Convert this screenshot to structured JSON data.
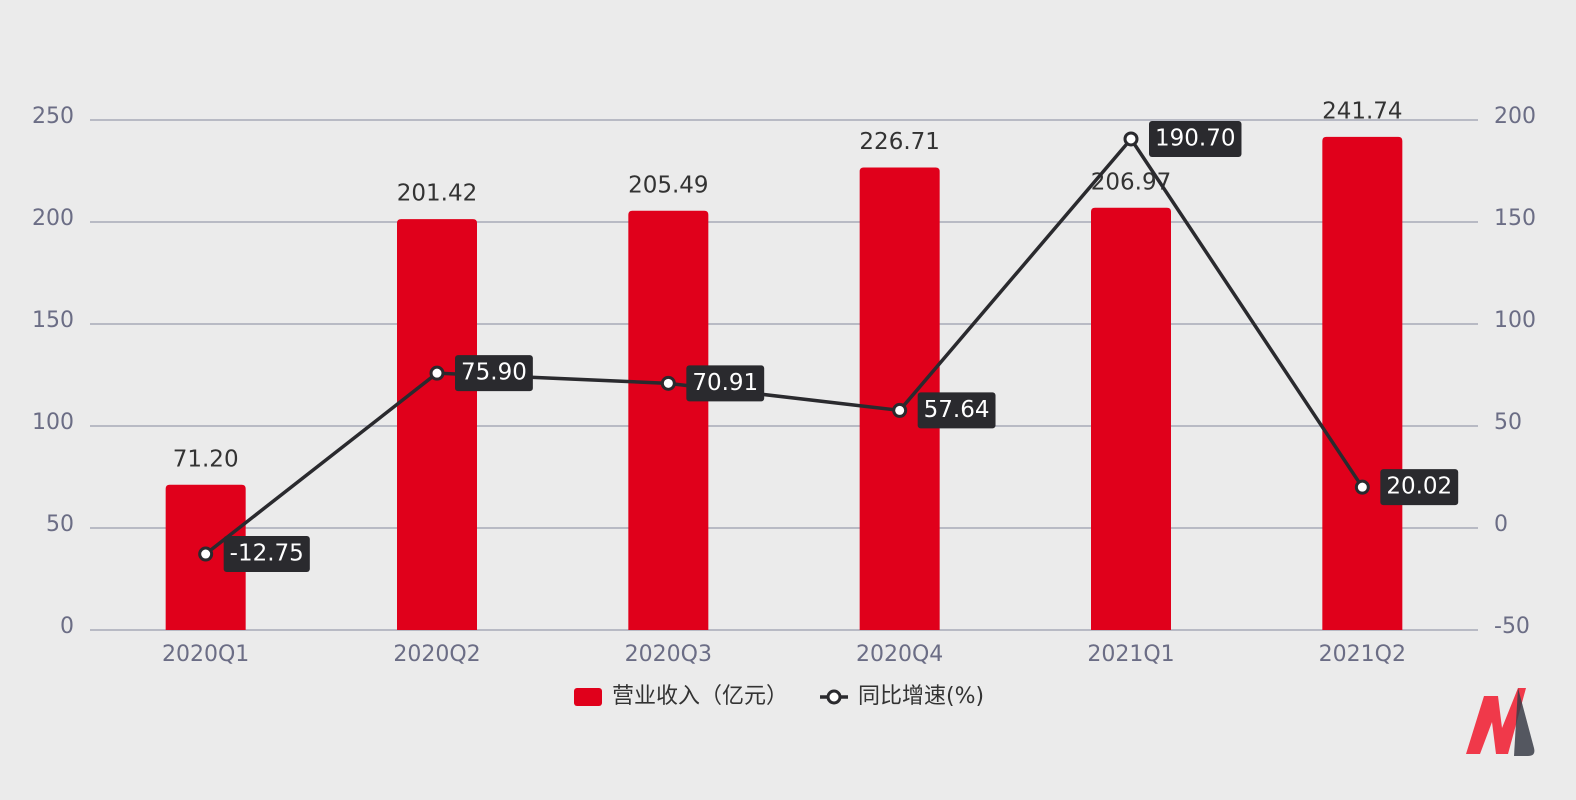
{
  "chart_data": {
    "type": "bar",
    "categories": [
      "2020Q1",
      "2020Q2",
      "2020Q3",
      "2020Q4",
      "2021Q1",
      "2021Q2"
    ],
    "series": [
      {
        "name": "营业收入（亿元）",
        "type": "bar",
        "color": "#e0001b",
        "values": [
          71.2,
          201.42,
          205.49,
          226.71,
          206.97,
          241.74
        ],
        "value_labels": [
          "71.20",
          "201.42",
          "205.49",
          "226.71",
          "206.97",
          "241.74"
        ]
      },
      {
        "name": "同比增速(%)",
        "type": "line",
        "axis": "y2",
        "color": "#2a2a2e",
        "values": [
          -12.75,
          75.9,
          70.91,
          57.64,
          190.7,
          20.02
        ],
        "value_labels": [
          "-12.75",
          "75.90",
          "70.91",
          "57.64",
          "190.70",
          "20.02"
        ]
      }
    ],
    "ylim": [
      0,
      250
    ],
    "yticks": [
      0,
      50,
      100,
      150,
      200,
      250
    ],
    "y2lim": [
      -50,
      200
    ],
    "y2ticks": [
      -50,
      0,
      50,
      100,
      150,
      200
    ],
    "grid": true
  }
}
